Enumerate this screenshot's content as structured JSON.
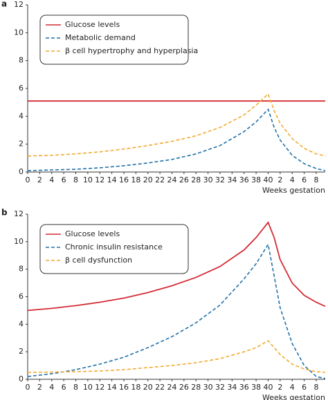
{
  "chart_data": [
    {
      "type": "line",
      "label": "a",
      "xlabel": "Weeks gestation",
      "x": [
        0,
        4,
        8,
        12,
        16,
        20,
        24,
        28,
        32,
        36,
        38,
        40,
        41,
        42,
        44,
        46,
        48,
        49.5
      ],
      "xlim": [
        0,
        49.5
      ],
      "xticks": [
        0,
        2,
        4,
        6,
        8,
        10,
        12,
        14,
        16,
        18,
        20,
        22,
        24,
        26,
        28,
        30,
        32,
        34,
        36,
        38,
        40,
        {
          "value": 42,
          "label": "2"
        },
        {
          "value": 44,
          "label": "4"
        },
        {
          "value": 46,
          "label": "6"
        },
        {
          "value": 48,
          "label": "8"
        }
      ],
      "ylim": [
        0,
        12
      ],
      "yticks": [
        0,
        2,
        4,
        6,
        8,
        10,
        12
      ],
      "series": [
        {
          "name": "Glucose levels",
          "color": "#d42a34",
          "dashed": false,
          "values": [
            5.1,
            5.1,
            5.1,
            5.1,
            5.1,
            5.1,
            5.1,
            5.1,
            5.1,
            5.1,
            5.1,
            5.1,
            5.1,
            5.1,
            5.1,
            5.1,
            5.1,
            5.1
          ]
        },
        {
          "name": "Metabolic demand",
          "color": "#1f6fa8",
          "dashed": true,
          "values": [
            0.1,
            0.15,
            0.2,
            0.3,
            0.45,
            0.65,
            0.9,
            1.3,
            1.9,
            2.9,
            3.6,
            4.5,
            3.2,
            2.3,
            1.2,
            0.6,
            0.25,
            0.1
          ]
        },
        {
          "name": "β cell hypertrophy and hyperplasia",
          "color": "#f2a92e",
          "dashed": true,
          "values": [
            1.15,
            1.2,
            1.3,
            1.45,
            1.65,
            1.9,
            2.2,
            2.6,
            3.2,
            4.1,
            4.8,
            5.6,
            4.4,
            3.5,
            2.4,
            1.7,
            1.3,
            1.15
          ]
        }
      ]
    },
    {
      "type": "line",
      "label": "b",
      "xlabel": "Weeks gestation",
      "x": [
        0,
        4,
        8,
        12,
        16,
        20,
        24,
        28,
        32,
        36,
        38,
        40,
        41,
        42,
        44,
        46,
        48,
        49.5
      ],
      "xlim": [
        0,
        49.5
      ],
      "xticks": [
        0,
        2,
        4,
        6,
        8,
        10,
        12,
        14,
        16,
        18,
        20,
        22,
        24,
        26,
        28,
        30,
        32,
        34,
        36,
        38,
        40,
        {
          "value": 42,
          "label": "2"
        },
        {
          "value": 44,
          "label": "4"
        },
        {
          "value": 46,
          "label": "6"
        },
        {
          "value": 48,
          "label": "8"
        }
      ],
      "ylim": [
        0,
        12
      ],
      "yticks": [
        0,
        2,
        4,
        6,
        8,
        10,
        12
      ],
      "series": [
        {
          "name": "Glucose levels",
          "color": "#d42a34",
          "dashed": false,
          "values": [
            5.0,
            5.15,
            5.35,
            5.6,
            5.9,
            6.3,
            6.8,
            7.4,
            8.2,
            9.4,
            10.3,
            11.4,
            10.3,
            8.7,
            7.0,
            6.1,
            5.6,
            5.3
          ]
        },
        {
          "name": "Chronic insulin resistance",
          "color": "#1f6fa8",
          "dashed": true,
          "values": [
            0.2,
            0.4,
            0.7,
            1.1,
            1.6,
            2.3,
            3.1,
            4.1,
            5.4,
            7.3,
            8.4,
            9.8,
            7.5,
            5.2,
            2.6,
            1.0,
            0.2,
            0.05
          ]
        },
        {
          "name": "β cell dysfunction",
          "color": "#f2a92e",
          "dashed": true,
          "values": [
            0.5,
            0.52,
            0.55,
            0.6,
            0.7,
            0.85,
            1.0,
            1.2,
            1.5,
            2.0,
            2.3,
            2.8,
            2.3,
            1.8,
            1.1,
            0.75,
            0.55,
            0.5
          ]
        }
      ]
    }
  ]
}
